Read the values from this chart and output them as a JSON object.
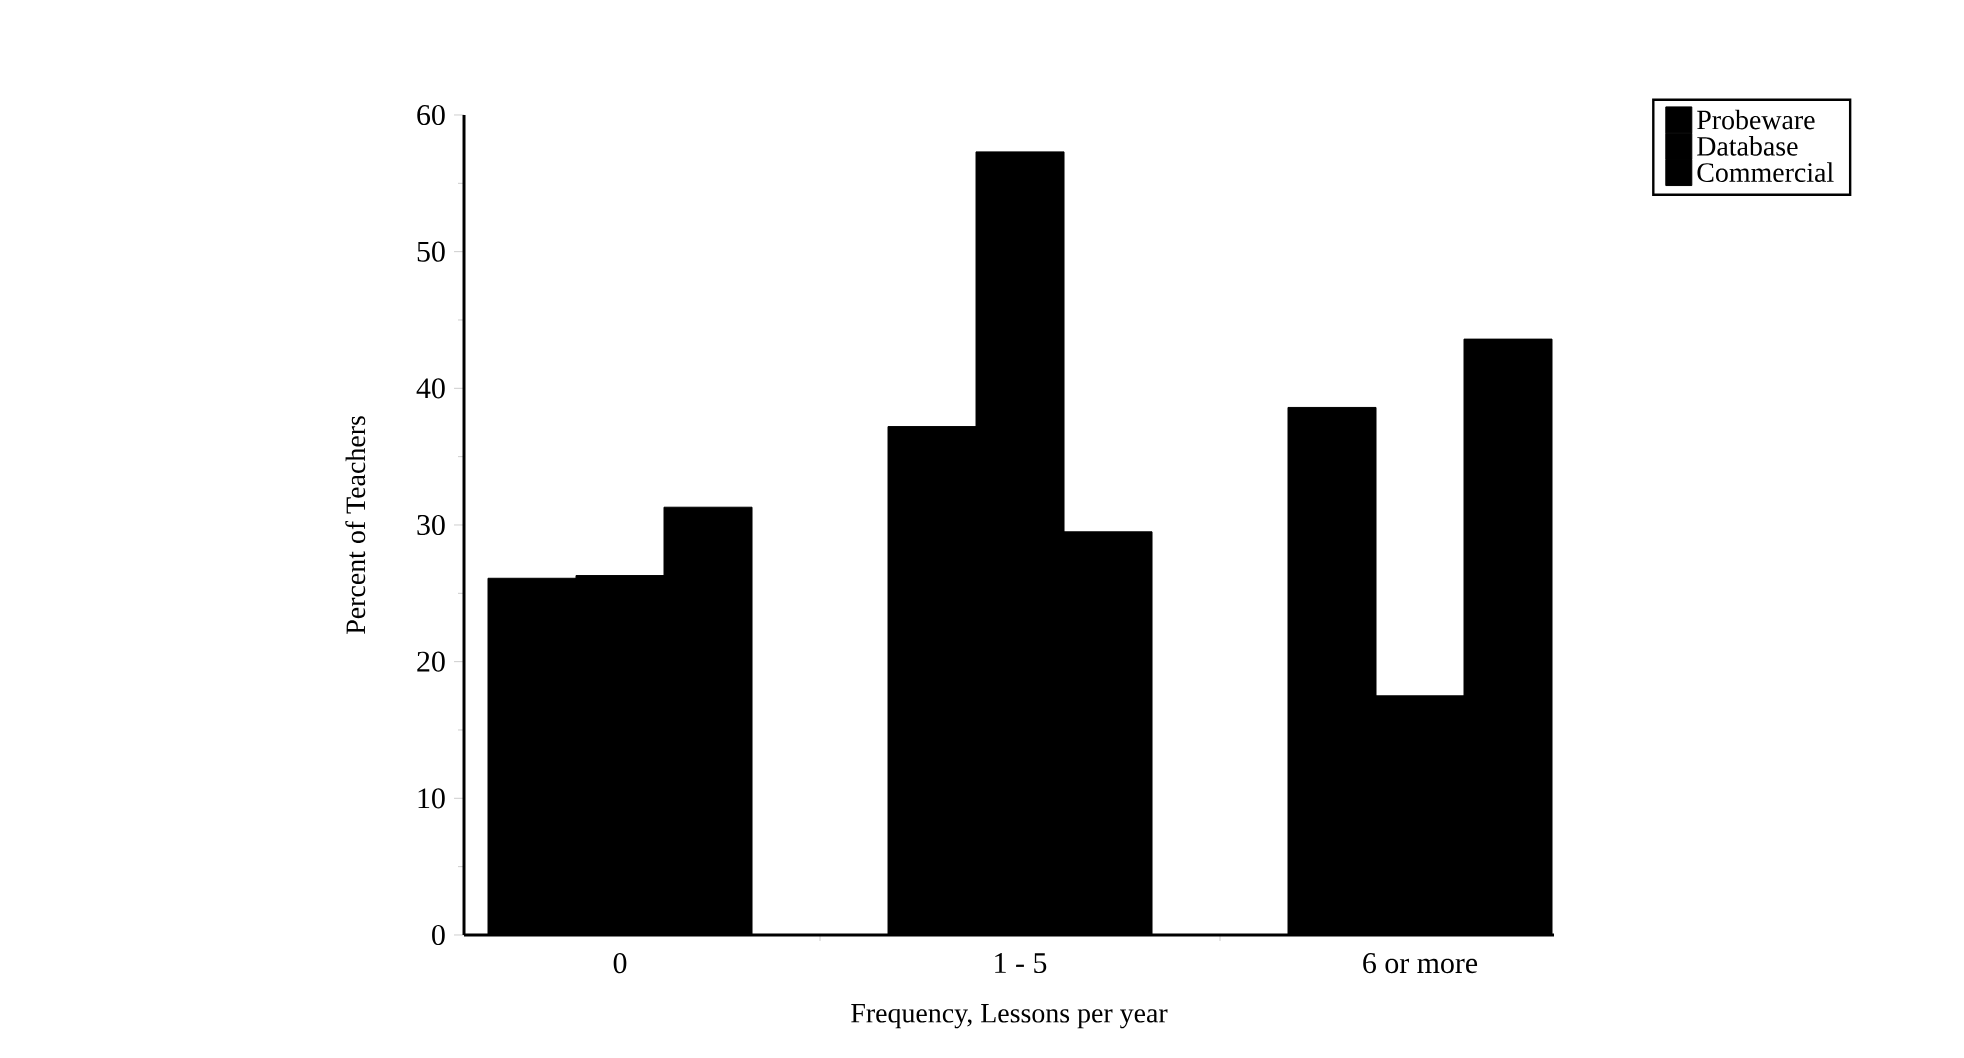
{
  "chart_data": {
    "type": "bar",
    "xlabel": "Frequency, Lessons per year",
    "ylabel": "Percent of Teachers",
    "categories": [
      "0",
      "1 - 5",
      "6 or more"
    ],
    "series": [
      {
        "name": "Probeware",
        "color": "#000000",
        "values": [
          26.1,
          37.2,
          38.6
        ]
      },
      {
        "name": "Database",
        "color": "#000000",
        "values": [
          26.3,
          57.3,
          17.5
        ]
      },
      {
        "name": "Commercial",
        "color": "#000000",
        "values": [
          31.3,
          29.5,
          43.6
        ]
      }
    ],
    "ylim": [
      0,
      60
    ],
    "yticks": [
      0,
      10,
      20,
      30,
      40,
      50,
      60
    ],
    "legend": "top right",
    "grid": false
  }
}
